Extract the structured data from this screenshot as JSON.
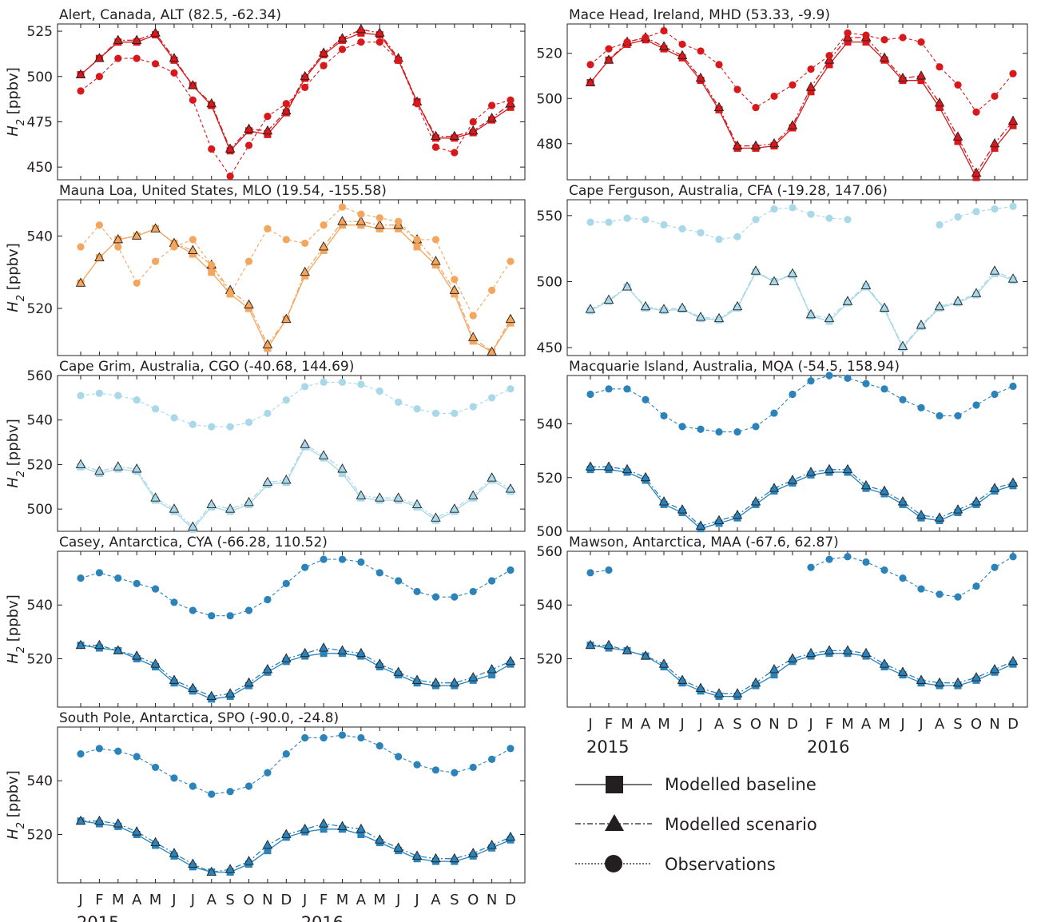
{
  "figure": {
    "legend": {
      "items": [
        {
          "label": "Modelled baseline",
          "marker": "square",
          "line": "solid"
        },
        {
          "label": "Modelled scenario",
          "marker": "triangle",
          "line": "dashdot"
        },
        {
          "label": "Observations",
          "marker": "circle",
          "line": "dotted"
        }
      ]
    },
    "x_tick_labels": [
      "J",
      "F",
      "M",
      "A",
      "M",
      "J",
      "J",
      "A",
      "S",
      "O",
      "N",
      "D",
      "J",
      "F",
      "M",
      "A",
      "M",
      "J",
      "J",
      "A",
      "S",
      "O",
      "N",
      "D"
    ],
    "year_labels": [
      "2015",
      "2016"
    ],
    "ylabel_base": "H",
    "ylabel_sub": "2",
    "ylabel_unit": " [ppbv]"
  },
  "chart_data": [
    {
      "type": "line",
      "title": "Alert, Canada, ALT (82.5, -62.34)",
      "color": "#d7191c",
      "ylim": [
        443,
        529
      ],
      "yticks": [
        450,
        475,
        500,
        525
      ],
      "series": [
        {
          "name": "Modelled baseline",
          "values": [
            501,
            510,
            519,
            519,
            523,
            509,
            495,
            484,
            459,
            470,
            468,
            480,
            499,
            512,
            520,
            524,
            523,
            509,
            486,
            466,
            466,
            469,
            476,
            483
          ]
        },
        {
          "name": "Modelled scenario",
          "values": [
            501,
            510,
            520,
            520,
            524,
            510,
            495,
            485,
            460,
            471,
            470,
            481,
            500,
            513,
            521,
            526,
            524,
            510,
            486,
            467,
            467,
            470,
            477,
            485
          ]
        },
        {
          "name": "Observations",
          "values": [
            492,
            500,
            510,
            510,
            507,
            502,
            487,
            460,
            445,
            462,
            478,
            485,
            494,
            506,
            515,
            519,
            519,
            509,
            485,
            461,
            458,
            475,
            484,
            487
          ]
        }
      ]
    },
    {
      "type": "line",
      "title": "Mace Head, Ireland, MHD (53.33, -9.9)",
      "color": "#d7191c",
      "ylim": [
        464,
        533
      ],
      "yticks": [
        480,
        500,
        520
      ],
      "series": [
        {
          "name": "Modelled baseline",
          "values": [
            507,
            517,
            524,
            526,
            522,
            518,
            508,
            495,
            478,
            478,
            479,
            487,
            503,
            515,
            525,
            525,
            517,
            508,
            508,
            496,
            481,
            465,
            478,
            488
          ]
        },
        {
          "name": "Modelled scenario",
          "values": [
            507,
            517,
            525,
            527,
            523,
            519,
            509,
            496,
            479,
            479,
            480,
            488,
            505,
            517,
            527,
            527,
            518,
            509,
            510,
            498,
            483,
            467,
            480,
            490
          ]
        },
        {
          "name": "Observations",
          "values": [
            515,
            522,
            525,
            527,
            530,
            524,
            521,
            515,
            504,
            496,
            501,
            506,
            513,
            519,
            529,
            528,
            526,
            527,
            525,
            514,
            506,
            494,
            501,
            511
          ]
        }
      ]
    },
    {
      "type": "line",
      "title": "Mauna Loa, United States, MLO (19.54, -155.58)",
      "color": "#f4a65e",
      "ylim": [
        507,
        550
      ],
      "yticks": [
        520,
        540
      ],
      "series": [
        {
          "name": "Modelled baseline",
          "values": [
            527,
            534,
            539,
            540,
            542,
            538,
            535,
            530,
            524,
            520,
            509,
            517,
            529,
            536,
            543,
            543,
            542,
            542,
            537,
            532,
            524,
            511,
            508,
            516
          ]
        },
        {
          "name": "Modelled scenario",
          "values": [
            527,
            534,
            539,
            540,
            542,
            538,
            536,
            532,
            525,
            521,
            510,
            517,
            530,
            537,
            544,
            544,
            543,
            543,
            539,
            533,
            525,
            512,
            508,
            517
          ]
        },
        {
          "name": "Observations",
          "values": [
            537,
            543,
            537,
            527,
            533,
            537,
            539,
            532,
            524,
            533,
            542,
            539,
            538,
            543,
            548,
            546,
            545,
            544,
            539,
            539,
            528,
            518,
            525,
            533
          ]
        }
      ]
    },
    {
      "type": "line",
      "title": "Cape Ferguson, Australia, CFA (-19.28, 147.06)",
      "color": "#a9d8e8",
      "ylim": [
        444,
        562
      ],
      "yticks": [
        450,
        500,
        550
      ],
      "series": [
        {
          "name": "Modelled baseline",
          "values": [
            478,
            485,
            496,
            480,
            478,
            479,
            472,
            471,
            480,
            507,
            500,
            505,
            474,
            470,
            484,
            496,
            479,
            450,
            466,
            480,
            484,
            490,
            506,
            501
          ]
        },
        {
          "name": "Modelled scenario",
          "values": [
            479,
            486,
            496,
            481,
            479,
            480,
            473,
            472,
            481,
            508,
            500,
            506,
            475,
            472,
            485,
            497,
            480,
            451,
            467,
            481,
            485,
            491,
            508,
            502
          ]
        },
        {
          "name": "Observations",
          "values": [
            545,
            545,
            548,
            547,
            543,
            540,
            537,
            532,
            534,
            547,
            555,
            556,
            551,
            548,
            547,
            null,
            null,
            null,
            null,
            543,
            549,
            553,
            555,
            557
          ]
        }
      ]
    },
    {
      "type": "line",
      "title": "Cape Grim, Australia, CGO (-40.68, 144.69)",
      "color": "#a9d8e8",
      "ylim": [
        490,
        560
      ],
      "yticks": [
        500,
        520,
        540,
        560
      ],
      "series": [
        {
          "name": "Modelled baseline",
          "values": [
            519,
            516,
            518,
            517,
            504,
            499,
            491,
            501,
            499,
            502,
            511,
            512,
            528,
            523,
            516,
            505,
            504,
            504,
            501,
            495,
            499,
            505,
            513,
            508
          ]
        },
        {
          "name": "Modelled scenario",
          "values": [
            520,
            517,
            519,
            518,
            505,
            500,
            492,
            502,
            500,
            503,
            512,
            513,
            529,
            524,
            518,
            506,
            505,
            505,
            502,
            496,
            500,
            506,
            514,
            509
          ]
        },
        {
          "name": "Observations",
          "values": [
            551,
            552,
            551,
            549,
            545,
            541,
            538,
            537,
            537,
            539,
            543,
            549,
            555,
            557,
            557,
            556,
            553,
            548,
            545,
            543,
            543,
            546,
            550,
            554
          ]
        }
      ]
    },
    {
      "type": "line",
      "title": "Macquarie Island, Australia, MQA (-54.5, 158.94)",
      "color": "#2b83ba",
      "ylim": [
        500,
        558
      ],
      "yticks": [
        500,
        520,
        540
      ],
      "series": [
        {
          "name": "Modelled baseline",
          "values": [
            523,
            523,
            522,
            519,
            510,
            507,
            501,
            503,
            505,
            510,
            515,
            518,
            521,
            522,
            522,
            516,
            514,
            510,
            505,
            504,
            507,
            510,
            515,
            517
          ]
        },
        {
          "name": "Modelled scenario",
          "values": [
            524,
            524,
            523,
            520,
            511,
            508,
            502,
            504,
            506,
            511,
            516,
            519,
            522,
            523,
            523,
            517,
            515,
            511,
            506,
            505,
            508,
            511,
            516,
            518
          ]
        },
        {
          "name": "Observations",
          "values": [
            551,
            553,
            553,
            549,
            543,
            539,
            538,
            537,
            537,
            539,
            544,
            551,
            556,
            558,
            557,
            555,
            553,
            549,
            546,
            543,
            543,
            547,
            551,
            554
          ]
        }
      ]
    },
    {
      "type": "line",
      "title": "Casey, Antarctica, CYA (-66.28, 110.52)",
      "color": "#2b83ba",
      "ylim": [
        502,
        560
      ],
      "yticks": [
        520,
        540
      ],
      "series": [
        {
          "name": "Modelled baseline",
          "values": [
            525,
            524,
            523,
            520,
            517,
            511,
            508,
            505,
            506,
            510,
            515,
            519,
            521,
            522,
            522,
            521,
            517,
            514,
            511,
            510,
            510,
            512,
            514,
            518
          ]
        },
        {
          "name": "Modelled scenario",
          "values": [
            525,
            525,
            523,
            521,
            518,
            512,
            509,
            506,
            507,
            511,
            516,
            520,
            522,
            524,
            523,
            522,
            518,
            515,
            512,
            511,
            511,
            513,
            516,
            519
          ]
        },
        {
          "name": "Observations",
          "values": [
            550,
            552,
            550,
            548,
            546,
            541,
            538,
            536,
            536,
            538,
            542,
            548,
            554,
            557,
            557,
            556,
            552,
            549,
            545,
            543,
            543,
            545,
            549,
            553
          ]
        }
      ]
    },
    {
      "type": "line",
      "title": "Mawson, Antarctica, MAA (-67.6, 62.87)",
      "color": "#2b83ba",
      "ylim": [
        502,
        560
      ],
      "yticks": [
        520,
        540,
        560
      ],
      "series": [
        {
          "name": "Modelled baseline",
          "values": [
            525,
            524,
            523,
            521,
            517,
            511,
            508,
            506,
            506,
            510,
            514,
            519,
            521,
            522,
            522,
            521,
            517,
            514,
            511,
            510,
            510,
            512,
            515,
            518
          ]
        },
        {
          "name": "Modelled scenario",
          "values": [
            525,
            525,
            523,
            521,
            518,
            512,
            509,
            507,
            507,
            511,
            516,
            520,
            522,
            523,
            523,
            522,
            518,
            515,
            512,
            511,
            511,
            513,
            516,
            519
          ]
        },
        {
          "name": "Observations",
          "values": [
            552,
            553,
            null,
            null,
            null,
            null,
            null,
            null,
            null,
            null,
            null,
            null,
            554,
            557,
            558,
            556,
            553,
            550,
            546,
            544,
            543,
            547,
            554,
            558
          ]
        }
      ]
    },
    {
      "type": "line",
      "title": "South Pole, Antarctica, SPO (-90.0, -24.8)",
      "color": "#2b83ba",
      "ylim": [
        502,
        560
      ],
      "yticks": [
        520,
        540
      ],
      "series": [
        {
          "name": "Modelled baseline",
          "values": [
            525,
            524,
            523,
            520,
            516,
            512,
            508,
            506,
            506,
            509,
            514,
            519,
            521,
            522,
            522,
            520,
            517,
            514,
            511,
            510,
            510,
            512,
            515,
            518
          ]
        },
        {
          "name": "Modelled scenario",
          "values": [
            525,
            525,
            524,
            521,
            517,
            513,
            509,
            506,
            507,
            510,
            516,
            520,
            522,
            524,
            523,
            522,
            518,
            515,
            512,
            511,
            511,
            513,
            516,
            519
          ]
        },
        {
          "name": "Observations",
          "values": [
            550,
            552,
            551,
            549,
            545,
            541,
            538,
            535,
            536,
            538,
            543,
            550,
            556,
            556,
            557,
            556,
            553,
            549,
            546,
            544,
            543,
            545,
            548,
            552
          ]
        }
      ]
    }
  ]
}
